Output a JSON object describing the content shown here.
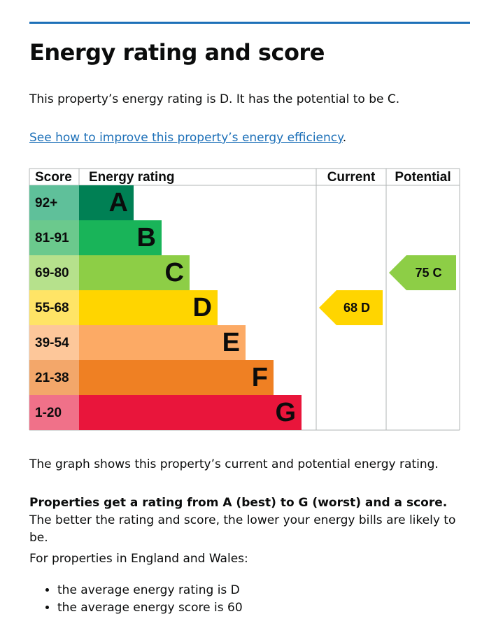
{
  "page": {
    "title": "Energy rating and score",
    "intro": "This property’s energy rating is D. It has the potential to be C.",
    "improve_link": "See how to improve this property’s energy efficiency",
    "improve_link_suffix": ".",
    "graph_caption": "The graph shows this property’s current and potential energy rating.",
    "rating_bold": "Properties get a rating from A (best) to G (worst) and a score.",
    "rating_rest": " The better the rating and score, the lower your energy bills are likely to be.",
    "average_intro": "For properties in England and Wales:",
    "average_items": [
      "the average energy rating is D",
      "the average energy score is 60"
    ]
  },
  "chart_data": {
    "type": "bar",
    "headers": {
      "score": "Score",
      "rating": "Energy rating",
      "current": "Current",
      "potential": "Potential"
    },
    "bands": [
      {
        "score": "92+",
        "letter": "A",
        "color": "#008054",
        "score_color": "#5fc09a"
      },
      {
        "score": "81-91",
        "letter": "B",
        "color": "#19b459",
        "score_color": "#6bc98d"
      },
      {
        "score": "69-80",
        "letter": "C",
        "color": "#8dce46",
        "score_color": "#b6e18c"
      },
      {
        "score": "55-68",
        "letter": "D",
        "color": "#ffd500",
        "score_color": "#ffe466"
      },
      {
        "score": "39-54",
        "letter": "E",
        "color": "#fcaa65",
        "score_color": "#fdc79a"
      },
      {
        "score": "21-38",
        "letter": "F",
        "color": "#ef8023",
        "score_color": "#f3a76a"
      },
      {
        "score": "1-20",
        "letter": "G",
        "color": "#e9153b",
        "score_color": "#f07189"
      }
    ],
    "current": {
      "value": 68,
      "letter": "D",
      "label": "68  D",
      "color": "#ffd500"
    },
    "potential": {
      "value": 75,
      "letter": "C",
      "label": "75  C",
      "color": "#8dce46"
    }
  }
}
